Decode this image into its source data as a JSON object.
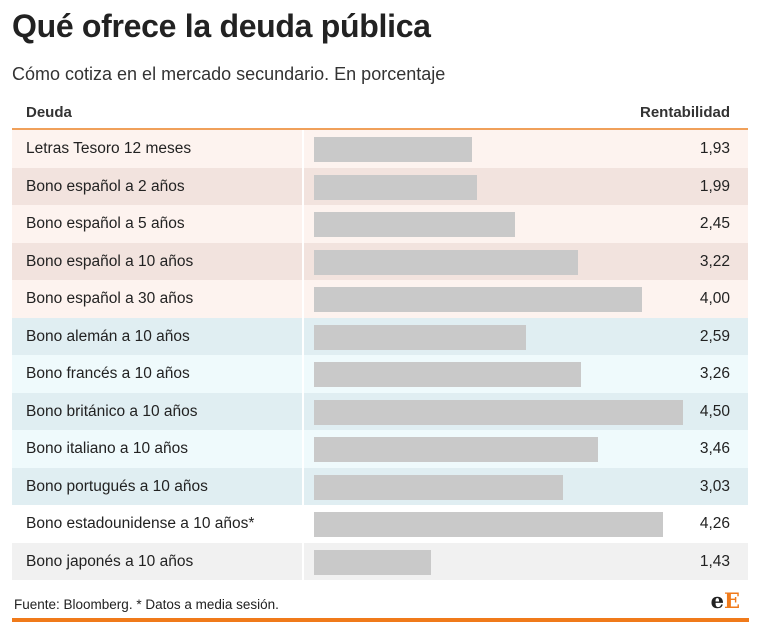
{
  "header": {
    "title": "Qué ofrece la deuda pública",
    "subtitle": "Cómo cotiza en el mercado secundario. En porcentaje"
  },
  "colors": {
    "group_spain_odd": "#fdf3ef",
    "group_spain_even": "#f2e3de",
    "group_europe_odd": "#e0eef2",
    "group_europe_even": "#effafc",
    "group_other_odd": "#ffffff",
    "group_other_even": "#f1f1f1",
    "bar": "#c9c9c9",
    "accent": "#f07a1a"
  },
  "chart_data": {
    "type": "bar",
    "orientation": "horizontal",
    "title": "Qué ofrece la deuda pública",
    "subtitle": "Cómo cotiza en el mercado secundario. En porcentaje",
    "column_headers": [
      "Deuda",
      "Rentabilidad"
    ],
    "xlim": [
      0,
      4.5
    ],
    "categories": [
      "Letras Tesoro 12 meses",
      "Bono español a 2 años",
      "Bono español a 5 años",
      "Bono español a 10 años",
      "Bono español a 30 años",
      "Bono alemán a 10 años",
      "Bono francés a 10 años",
      "Bono británico a 10 años",
      "Bono italiano a 10 años",
      "Bono portugués a 10 años",
      "Bono estadounidense a 10 años*",
      "Bono japonés a 10 años"
    ],
    "values": [
      1.93,
      1.99,
      2.45,
      3.22,
      4.0,
      2.59,
      3.26,
      4.5,
      3.46,
      3.03,
      4.26,
      1.43
    ],
    "value_labels": [
      "1,93",
      "1,99",
      "2,45",
      "3,22",
      "4,00",
      "2,59",
      "3,26",
      "4,50",
      "3,46",
      "3,03",
      "4,26",
      "1,43"
    ],
    "groups": [
      "spain",
      "spain",
      "spain",
      "spain",
      "spain",
      "europe",
      "europe",
      "europe",
      "europe",
      "europe",
      "other",
      "other"
    ]
  },
  "footer": {
    "source": "Fuente: Bloomberg. * Datos a media sesión.",
    "logo_part1": "e",
    "logo_part2": "E"
  }
}
